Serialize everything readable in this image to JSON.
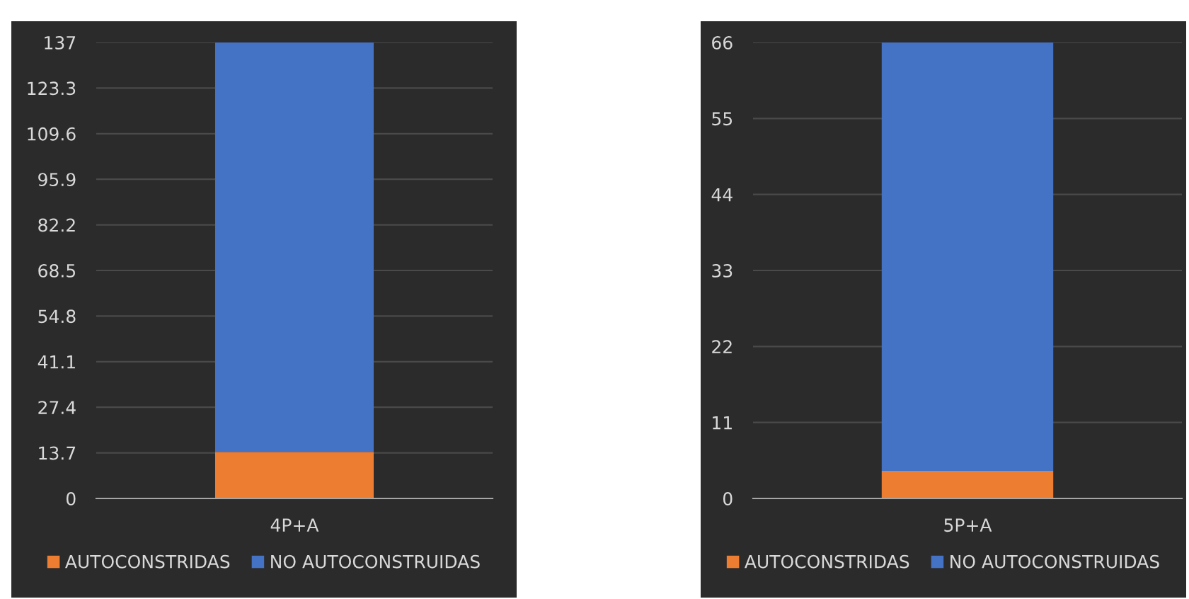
{
  "chart_data": [
    {
      "type": "bar",
      "stacked": true,
      "categories": [
        "4P+A"
      ],
      "series": [
        {
          "name": "AUTOCONSTRIDAS",
          "color": "#ed7d31",
          "values": [
            14
          ]
        },
        {
          "name": "NO AUTOCONSTRUIDAS",
          "color": "#4472c4",
          "values": [
            123
          ]
        }
      ],
      "ylim": [
        0,
        137
      ],
      "yticks": [
        0,
        13.7,
        27.4,
        41.1,
        54.8,
        68.5,
        82.2,
        95.9,
        109.6,
        123.3,
        137
      ],
      "grid": "y",
      "legend": "bottom"
    },
    {
      "type": "bar",
      "stacked": true,
      "categories": [
        "5P+A"
      ],
      "series": [
        {
          "name": "AUTOCONSTRIDAS",
          "color": "#ed7d31",
          "values": [
            4
          ]
        },
        {
          "name": "NO AUTOCONSTRUIDAS",
          "color": "#4472c4",
          "values": [
            62
          ]
        }
      ],
      "ylim": [
        0,
        66
      ],
      "yticks": [
        0,
        11,
        22,
        33,
        44,
        55,
        66
      ],
      "grid": "y",
      "legend": "bottom"
    }
  ]
}
